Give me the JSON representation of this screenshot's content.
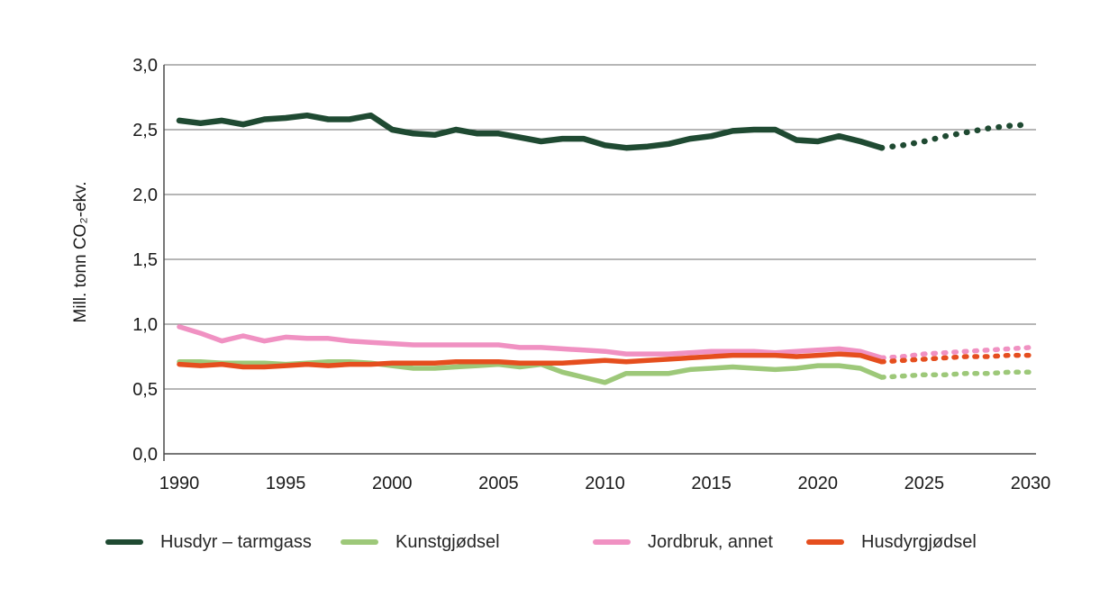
{
  "chart_data": {
    "type": "line",
    "title": "",
    "xlabel": "",
    "ylabel": "Mill. tonn CO₂-ekv.",
    "ylim": [
      0,
      3
    ],
    "xlim": [
      1990,
      2030
    ],
    "grid": "horizontal",
    "legend_position": "bottom",
    "ytick_values": [
      0,
      0.5,
      1,
      1.5,
      2,
      2.5,
      3
    ],
    "ytick_labels": [
      "0,0",
      "0,5",
      "1,0",
      "1,5",
      "2,0",
      "2,5",
      "3,0"
    ],
    "xtick_values": [
      1990,
      1995,
      2000,
      2005,
      2010,
      2015,
      2020,
      2025,
      2030
    ],
    "xtick_labels": [
      "1990",
      "1995",
      "2000",
      "2005",
      "2010",
      "2015",
      "2020",
      "2025",
      "2030"
    ],
    "dotted_from_year": 2023,
    "years": [
      1990,
      1991,
      1992,
      1993,
      1994,
      1995,
      1996,
      1997,
      1998,
      1999,
      2000,
      2001,
      2002,
      2003,
      2004,
      2005,
      2006,
      2007,
      2008,
      2009,
      2010,
      2011,
      2012,
      2013,
      2014,
      2015,
      2016,
      2017,
      2018,
      2019,
      2020,
      2021,
      2022,
      2023,
      2024,
      2025,
      2026,
      2027,
      2028,
      2029,
      2030
    ],
    "series": [
      {
        "name": "Husdyr – tarmgass",
        "color": "#1f4a32",
        "values": [
          2.57,
          2.55,
          2.57,
          2.54,
          2.58,
          2.59,
          2.61,
          2.58,
          2.58,
          2.61,
          2.5,
          2.47,
          2.46,
          2.5,
          2.47,
          2.47,
          2.44,
          2.41,
          2.43,
          2.43,
          2.38,
          2.36,
          2.37,
          2.39,
          2.43,
          2.45,
          2.49,
          2.5,
          2.5,
          2.42,
          2.41,
          2.45,
          2.41,
          2.36,
          2.38,
          2.41,
          2.45,
          2.48,
          2.51,
          2.53,
          2.54
        ]
      },
      {
        "name": "Kunstgjødsel",
        "color": "#9dc879",
        "values": [
          0.71,
          0.71,
          0.7,
          0.7,
          0.7,
          0.69,
          0.7,
          0.71,
          0.71,
          0.7,
          0.68,
          0.66,
          0.66,
          0.67,
          0.68,
          0.69,
          0.67,
          0.69,
          0.63,
          0.59,
          0.55,
          0.62,
          0.62,
          0.62,
          0.65,
          0.66,
          0.67,
          0.66,
          0.65,
          0.66,
          0.68,
          0.68,
          0.66,
          0.59,
          0.6,
          0.61,
          0.61,
          0.62,
          0.62,
          0.63,
          0.63
        ]
      },
      {
        "name": "Jordbruk, annet",
        "color": "#f091c2",
        "values": [
          0.98,
          0.93,
          0.87,
          0.91,
          0.87,
          0.9,
          0.89,
          0.89,
          0.87,
          0.86,
          0.85,
          0.84,
          0.84,
          0.84,
          0.84,
          0.84,
          0.82,
          0.82,
          0.81,
          0.8,
          0.79,
          0.77,
          0.77,
          0.77,
          0.78,
          0.79,
          0.79,
          0.79,
          0.78,
          0.79,
          0.8,
          0.81,
          0.79,
          0.74,
          0.75,
          0.77,
          0.78,
          0.79,
          0.8,
          0.81,
          0.82
        ]
      },
      {
        "name": "Husdyrgjødsel",
        "color": "#e54e1e",
        "values": [
          0.69,
          0.68,
          0.69,
          0.67,
          0.67,
          0.68,
          0.69,
          0.68,
          0.69,
          0.69,
          0.7,
          0.7,
          0.7,
          0.71,
          0.71,
          0.71,
          0.7,
          0.7,
          0.7,
          0.71,
          0.72,
          0.71,
          0.72,
          0.73,
          0.74,
          0.75,
          0.76,
          0.76,
          0.76,
          0.75,
          0.76,
          0.77,
          0.76,
          0.71,
          0.72,
          0.73,
          0.74,
          0.75,
          0.75,
          0.76,
          0.76
        ]
      }
    ]
  },
  "colors": {
    "gridline": "#8a8a8a",
    "axis": "#4a4a4a",
    "tick_text": "#1a1a1a"
  }
}
